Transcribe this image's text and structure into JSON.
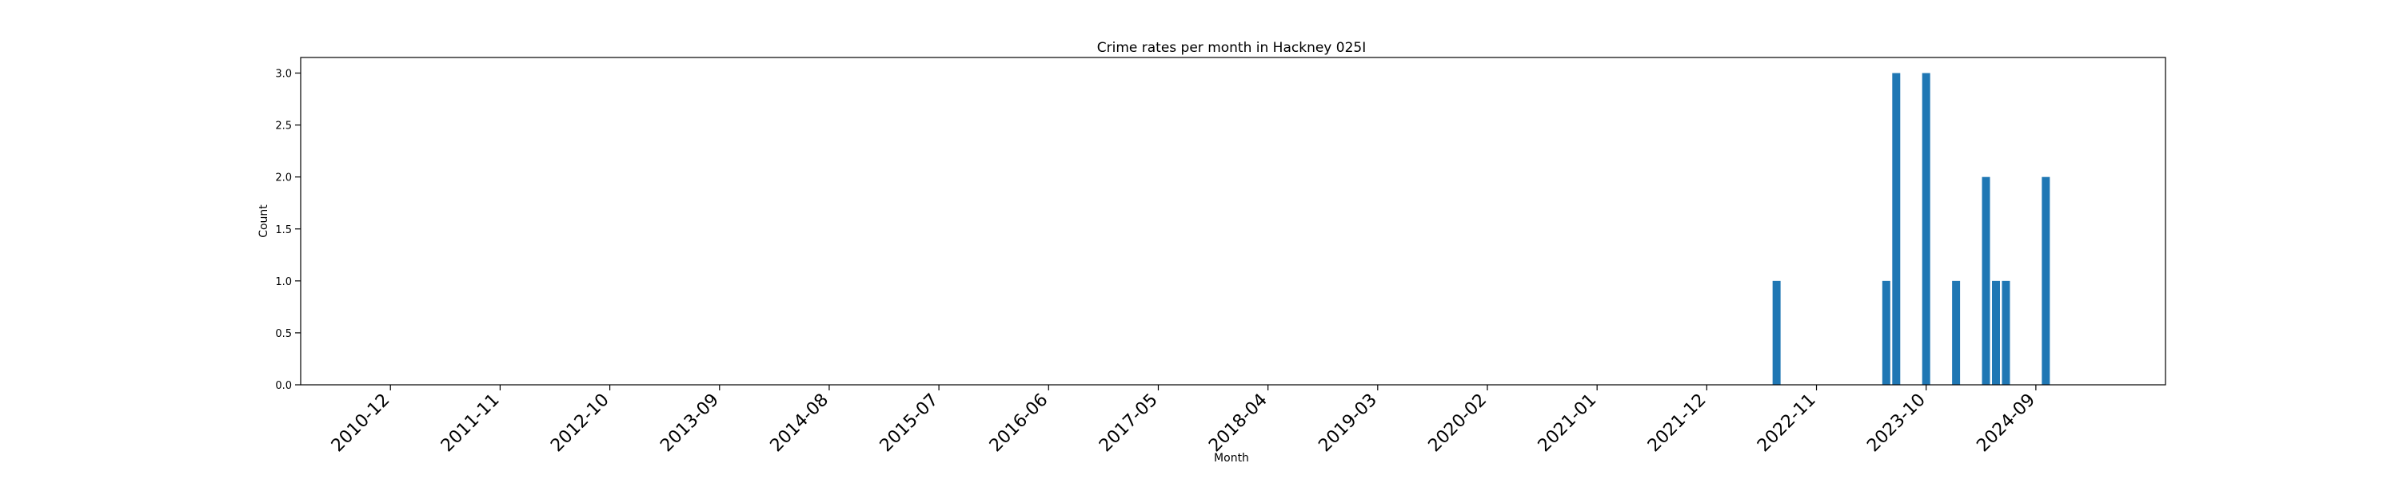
{
  "chart_data": {
    "type": "bar",
    "title": "Crime rates per month in Hackney 025I",
    "xlabel": "Month",
    "ylabel": "Count",
    "ylim": [
      0,
      3.15
    ],
    "y_ticks": [
      "0.0",
      "0.5",
      "1.0",
      "1.5",
      "2.0",
      "2.5",
      "3.0"
    ],
    "x_ticks": [
      "2010-12",
      "2011-11",
      "2012-10",
      "2013-09",
      "2014-08",
      "2015-07",
      "2016-06",
      "2017-05",
      "2018-04",
      "2019-03",
      "2020-02",
      "2021-01",
      "2021-12",
      "2022-11",
      "2023-10",
      "2024-09"
    ],
    "xlim": [
      "2010-03",
      "2025-10"
    ],
    "grid": false,
    "bar_color": "#1f77b4",
    "categories": [
      "2022-07",
      "2023-06",
      "2023-07",
      "2023-10",
      "2024-01",
      "2024-04",
      "2024-05",
      "2024-06",
      "2024-10"
    ],
    "values": [
      1,
      1,
      3,
      3,
      1,
      2,
      1,
      1,
      2
    ]
  }
}
